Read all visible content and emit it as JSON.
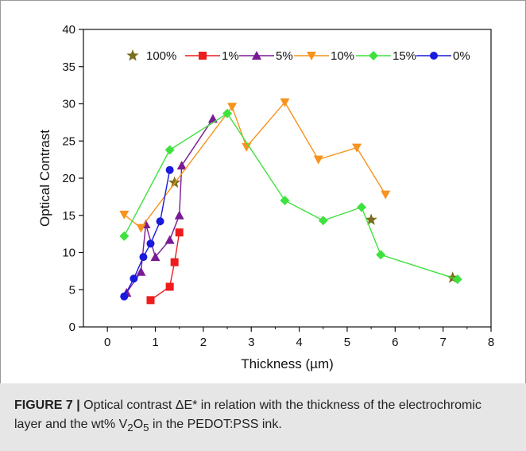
{
  "chart_data": {
    "type": "line",
    "xlabel": "Thickness (µm)",
    "ylabel": "Optical Contrast",
    "xlim": [
      -0.5,
      8
    ],
    "ylim": [
      0,
      40
    ],
    "xticks": [
      0,
      1,
      2,
      3,
      4,
      5,
      6,
      7,
      8
    ],
    "yticks": [
      0,
      5,
      10,
      15,
      20,
      25,
      30,
      35,
      40
    ],
    "grid": false,
    "legend_position": "top",
    "series": [
      {
        "name": "100%",
        "color": "#7a6e1c",
        "marker": "star",
        "line": false,
        "points": [
          [
            1.4,
            19.4
          ],
          [
            5.5,
            14.4
          ],
          [
            7.2,
            6.6
          ]
        ]
      },
      {
        "name": "1%",
        "color": "#ee1c1c",
        "marker": "square",
        "line": true,
        "points": [
          [
            0.9,
            3.6
          ],
          [
            1.3,
            5.4
          ],
          [
            1.4,
            8.7
          ],
          [
            1.5,
            12.7
          ]
        ]
      },
      {
        "name": "5%",
        "color": "#7a1a96",
        "marker": "triangle-up",
        "line": true,
        "points": [
          [
            0.4,
            4.6
          ],
          [
            0.7,
            7.4
          ],
          [
            0.8,
            13.8
          ],
          [
            1.0,
            9.4
          ],
          [
            1.3,
            11.7
          ],
          [
            1.5,
            15.0
          ],
          [
            1.55,
            21.7
          ],
          [
            2.2,
            28.0
          ]
        ]
      },
      {
        "name": "10%",
        "color": "#f7931e",
        "marker": "triangle-down",
        "line": true,
        "points": [
          [
            0.35,
            15.1
          ],
          [
            0.7,
            13.3
          ],
          [
            2.6,
            29.6
          ],
          [
            2.9,
            24.2
          ],
          [
            3.7,
            30.2
          ],
          [
            4.4,
            22.5
          ],
          [
            5.2,
            24.1
          ],
          [
            5.8,
            17.8
          ]
        ]
      },
      {
        "name": "15%",
        "color": "#3ee23e",
        "marker": "diamond",
        "line": true,
        "points": [
          [
            0.35,
            12.2
          ],
          [
            1.3,
            23.8
          ],
          [
            2.5,
            28.7
          ],
          [
            3.7,
            17.0
          ],
          [
            4.5,
            14.3
          ],
          [
            5.3,
            16.1
          ],
          [
            5.7,
            9.7
          ],
          [
            7.3,
            6.4
          ]
        ]
      },
      {
        "name": "0%",
        "color": "#1a1adc",
        "marker": "circle",
        "line": true,
        "points": [
          [
            0.35,
            4.1
          ],
          [
            0.55,
            6.5
          ],
          [
            0.75,
            9.4
          ],
          [
            0.9,
            11.2
          ],
          [
            1.1,
            14.2
          ],
          [
            1.3,
            21.1
          ]
        ]
      }
    ]
  },
  "caption": {
    "label": "FIGURE 7 |",
    "text_before": " Optical contrast ΔE* in relation with the thickness of the electrochromic layer and the wt% V",
    "sub1": "2",
    "mid": "O",
    "sub2": "5",
    "text_after": " in the PEDOT:PSS ink."
  }
}
